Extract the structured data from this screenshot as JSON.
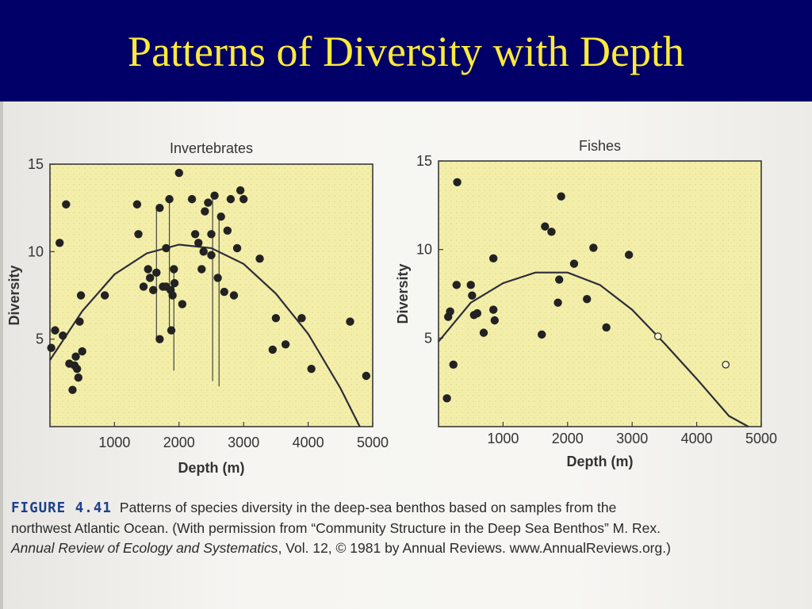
{
  "slide": {
    "title": "Patterns of Diversity with Depth"
  },
  "caption": {
    "label": "FIGURE 4.41",
    "line1": "Patterns of species diversity in the deep-sea benthos based on samples from the",
    "line2": "northwest Atlantic Ocean. (With permission from “Community Structure in the Deep Sea Benthos” M. Rex.",
    "journal": "Annual Review of Ecology and Systematics",
    "line3_rest": ", Vol. 12, © 1981 by Annual Reviews. www.AnnualReviews.org.)"
  },
  "colors": {
    "header_bg": "#000068",
    "title": "#ffea3a",
    "plot_bg": "#f3eeaa",
    "marker": "#222222"
  },
  "chart_data": [
    {
      "type": "scatter",
      "title": "Invertebrates",
      "xlabel": "Depth (m)",
      "ylabel": "Diversity",
      "xlim": [
        0,
        5000
      ],
      "ylim": [
        0,
        15
      ],
      "xticks": [
        "1000",
        "2000",
        "3000",
        "4000",
        "5000"
      ],
      "yticks": [
        "5",
        "10",
        "15"
      ],
      "grid": false,
      "points": [
        [
          20,
          4.5
        ],
        [
          80,
          5.5
        ],
        [
          150,
          10.5
        ],
        [
          200,
          5.2
        ],
        [
          250,
          12.7
        ],
        [
          300,
          3.6
        ],
        [
          350,
          2.1
        ],
        [
          380,
          3.5
        ],
        [
          400,
          4.0
        ],
        [
          420,
          3.3
        ],
        [
          440,
          2.8
        ],
        [
          460,
          6.0
        ],
        [
          480,
          7.5
        ],
        [
          500,
          4.3
        ],
        [
          850,
          7.5
        ],
        [
          1350,
          12.7
        ],
        [
          1370,
          11.0
        ],
        [
          1450,
          8.0
        ],
        [
          1520,
          9.0
        ],
        [
          1550,
          8.5
        ],
        [
          1600,
          7.8
        ],
        [
          1650,
          8.8
        ],
        [
          1700,
          12.5
        ],
        [
          1700,
          5.0
        ],
        [
          1750,
          8.0
        ],
        [
          1800,
          10.2
        ],
        [
          1800,
          8.0
        ],
        [
          1850,
          13.0
        ],
        [
          1870,
          7.8
        ],
        [
          1880,
          5.5
        ],
        [
          1900,
          7.5
        ],
        [
          1920,
          9.0
        ],
        [
          1930,
          8.2
        ],
        [
          2000,
          14.5
        ],
        [
          2050,
          7.0
        ],
        [
          2200,
          13.0
        ],
        [
          2250,
          11.0
        ],
        [
          2300,
          10.5
        ],
        [
          2350,
          9.0
        ],
        [
          2380,
          10.0
        ],
        [
          2400,
          12.3
        ],
        [
          2450,
          12.8
        ],
        [
          2500,
          11.0
        ],
        [
          2500,
          9.8
        ],
        [
          2550,
          13.2
        ],
        [
          2600,
          8.5
        ],
        [
          2650,
          12.0
        ],
        [
          2700,
          7.7
        ],
        [
          2750,
          11.2
        ],
        [
          2800,
          13.0
        ],
        [
          2850,
          7.5
        ],
        [
          2900,
          10.2
        ],
        [
          2950,
          13.5
        ],
        [
          3000,
          13.0
        ],
        [
          3250,
          9.6
        ],
        [
          3450,
          4.4
        ],
        [
          3500,
          6.2
        ],
        [
          3650,
          4.7
        ],
        [
          3900,
          6.2
        ],
        [
          4050,
          3.3
        ],
        [
          4650,
          6.0
        ],
        [
          4900,
          2.9
        ]
      ],
      "range_bars": [
        [
          1650,
          5.0,
          12.5
        ],
        [
          1850,
          5.5,
          13.0
        ],
        [
          1920,
          3.2,
          9.0
        ],
        [
          2520,
          2.6,
          13.2
        ],
        [
          2620,
          2.3,
          12.0
        ]
      ],
      "fit_curve": [
        [
          0,
          3.8
        ],
        [
          500,
          6.6
        ],
        [
          1000,
          8.7
        ],
        [
          1500,
          9.9
        ],
        [
          2000,
          10.4
        ],
        [
          2500,
          10.2
        ],
        [
          3000,
          9.3
        ],
        [
          3500,
          7.6
        ],
        [
          4000,
          5.3
        ],
        [
          4500,
          2.2
        ],
        [
          4800,
          0.0
        ]
      ]
    },
    {
      "type": "scatter",
      "title": "Fishes",
      "xlabel": "Depth (m)",
      "ylabel": "Diversity",
      "xlim": [
        0,
        5000
      ],
      "ylim": [
        0,
        15
      ],
      "xticks": [
        "1000",
        "2000",
        "3000",
        "4000",
        "5000"
      ],
      "yticks": [
        "5",
        "10",
        "15"
      ],
      "grid": false,
      "points": [
        [
          130,
          1.6
        ],
        [
          150,
          6.2
        ],
        [
          180,
          6.5
        ],
        [
          230,
          3.5
        ],
        [
          280,
          8.0
        ],
        [
          290,
          13.8
        ],
        [
          500,
          8.0
        ],
        [
          520,
          7.4
        ],
        [
          550,
          6.3
        ],
        [
          600,
          6.4
        ],
        [
          700,
          5.3
        ],
        [
          850,
          9.5
        ],
        [
          850,
          6.6
        ],
        [
          870,
          6.0
        ],
        [
          1600,
          5.2
        ],
        [
          1650,
          11.3
        ],
        [
          1750,
          11.0
        ],
        [
          1850,
          7.0
        ],
        [
          1870,
          8.3
        ],
        [
          1900,
          13.0
        ],
        [
          2100,
          9.2
        ],
        [
          2300,
          7.2
        ],
        [
          2400,
          10.1
        ],
        [
          2600,
          5.6
        ],
        [
          2950,
          9.7
        ]
      ],
      "open_points": [
        [
          3400,
          5.1
        ],
        [
          4450,
          3.5
        ]
      ],
      "fit_curve": [
        [
          0,
          4.8
        ],
        [
          500,
          7.0
        ],
        [
          1000,
          8.1
        ],
        [
          1500,
          8.7
        ],
        [
          2000,
          8.7
        ],
        [
          2500,
          8.0
        ],
        [
          3000,
          6.6
        ],
        [
          3500,
          4.7
        ],
        [
          4000,
          2.7
        ],
        [
          4500,
          0.6
        ],
        [
          4800,
          0.0
        ]
      ]
    }
  ]
}
